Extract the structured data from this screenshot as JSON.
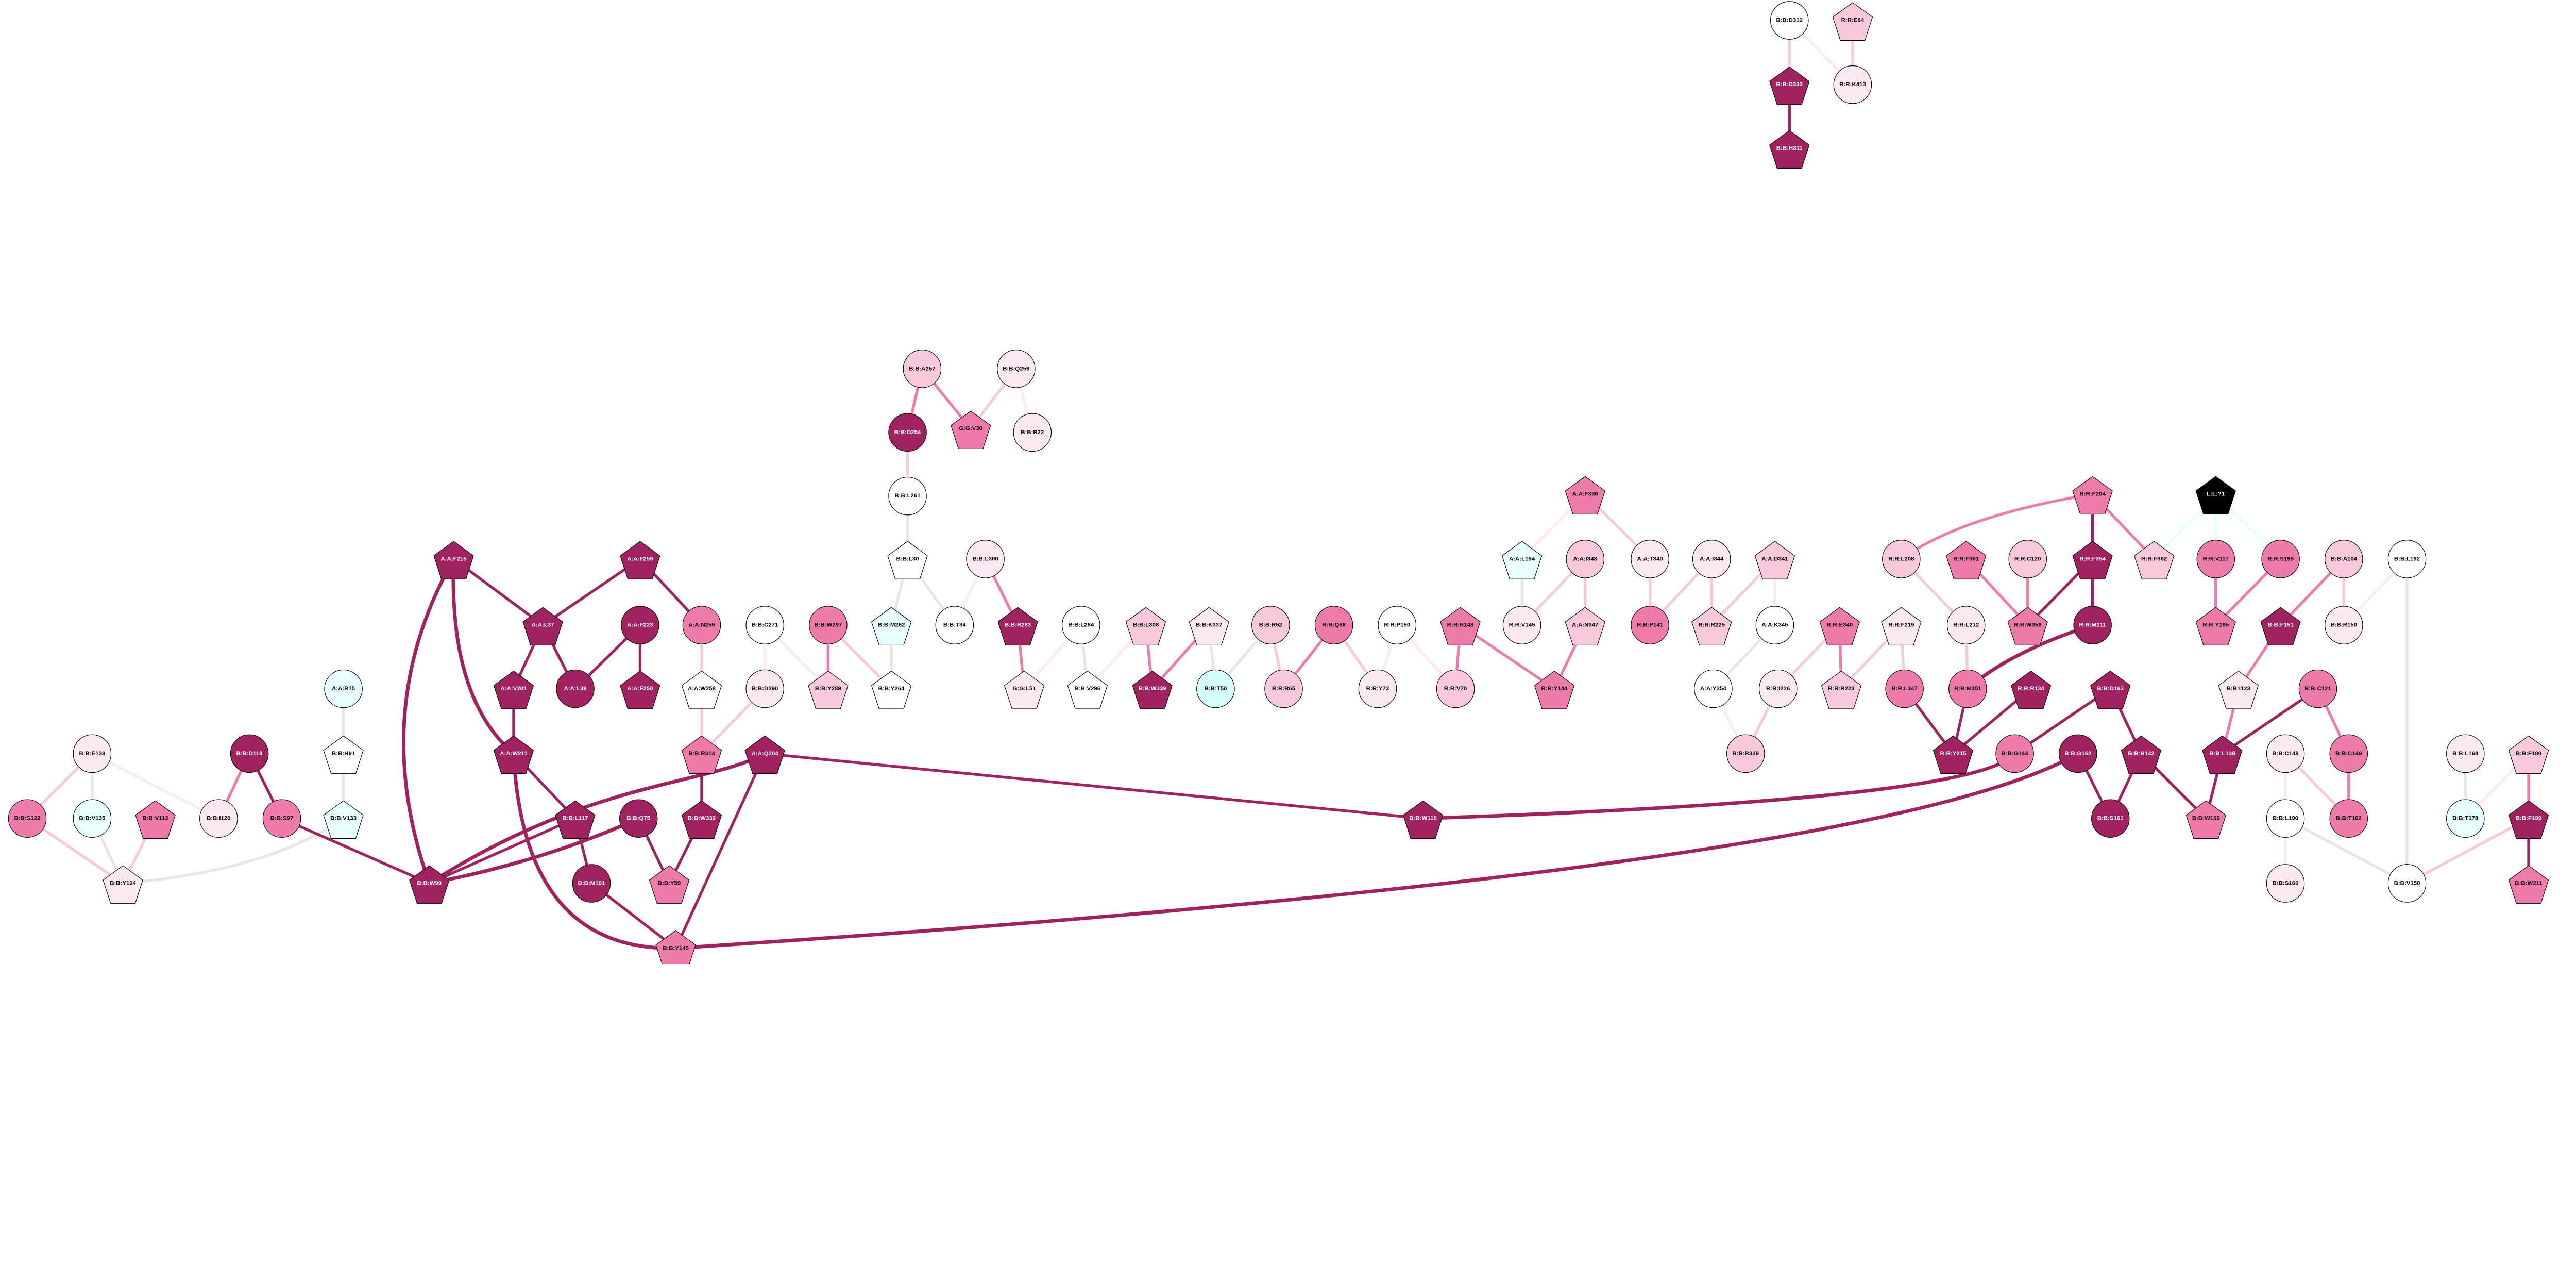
{
  "palette": {
    "dark": "#A0225E",
    "mid": "#EF7BAA",
    "light": "#F8C8DC",
    "vlight": "#FBEAF2",
    "white": "#FFFFFF",
    "cyan": "#E8FFFF",
    "cyan2": "#D5FFFF",
    "black": "#000000",
    "grey": "#E6E6E6",
    "edge_cyan": "#E6FFFF"
  },
  "nodes": [
    {
      "label": "B:B:D312",
      "shape": "circle",
      "fill": "white"
    },
    {
      "label": "R:R:E64",
      "shape": "pentagon",
      "fill": "light"
    },
    {
      "label": "B:B:D333",
      "shape": "pentagon",
      "fill": "dark"
    },
    {
      "label": "R:R:K413",
      "shape": "circle",
      "fill": "vlight"
    },
    {
      "label": "B:B:H311",
      "shape": "pentagon",
      "fill": "dark"
    },
    {
      "label": "B:B:A257",
      "shape": "circle",
      "fill": "light"
    },
    {
      "label": "B:B:Q259",
      "shape": "circle",
      "fill": "vlight"
    },
    {
      "label": "B:B:D254",
      "shape": "circle",
      "fill": "dark"
    },
    {
      "label": "G:G:V30",
      "shape": "pentagon",
      "fill": "mid"
    },
    {
      "label": "B:B:R22",
      "shape": "circle",
      "fill": "vlight"
    },
    {
      "label": "B:B:L261",
      "shape": "circle",
      "fill": "white"
    },
    {
      "label": "A:A:F215",
      "shape": "pentagon",
      "fill": "dark"
    },
    {
      "label": "A:A:F259",
      "shape": "pentagon",
      "fill": "dark"
    },
    {
      "label": "B:B:L30",
      "shape": "pentagon",
      "fill": "white"
    },
    {
      "label": "B:B:L300",
      "shape": "circle",
      "fill": "vlight"
    },
    {
      "label": "A:A:F336",
      "shape": "pentagon",
      "fill": "mid"
    },
    {
      "label": "A:A:L194",
      "shape": "pentagon",
      "fill": "cyan"
    },
    {
      "label": "A:A:I343",
      "shape": "circle",
      "fill": "light"
    },
    {
      "label": "A:A:T340",
      "shape": "circle",
      "fill": "vlight"
    },
    {
      "label": "A:A:I344",
      "shape": "circle",
      "fill": "vlight"
    },
    {
      "label": "A:A:D341",
      "shape": "pentagon",
      "fill": "light"
    },
    {
      "label": "R:R:F204",
      "shape": "pentagon",
      "fill": "mid"
    },
    {
      "label": "L:L:?1",
      "shape": "pentagon",
      "fill": "black"
    },
    {
      "label": "R:R:L208",
      "shape": "circle",
      "fill": "light"
    },
    {
      "label": "R:R:F361",
      "shape": "pentagon",
      "fill": "mid"
    },
    {
      "label": "R:R:C120",
      "shape": "circle",
      "fill": "light"
    },
    {
      "label": "R:R:F354",
      "shape": "pentagon",
      "fill": "dark"
    },
    {
      "label": "R:R:F362",
      "shape": "pentagon",
      "fill": "light"
    },
    {
      "label": "R:R:V117",
      "shape": "circle",
      "fill": "mid"
    },
    {
      "label": "R:R:S199",
      "shape": "circle",
      "fill": "mid"
    },
    {
      "label": "B:B:A104",
      "shape": "circle",
      "fill": "light"
    },
    {
      "label": "B:B:L192",
      "shape": "circle",
      "fill": "white"
    },
    {
      "label": "A:A:L37",
      "shape": "pentagon",
      "fill": "dark"
    },
    {
      "label": "A:A:F223",
      "shape": "circle",
      "fill": "dark"
    },
    {
      "label": "A:A:N256",
      "shape": "circle",
      "fill": "mid"
    },
    {
      "label": "B:B:C271",
      "shape": "circle",
      "fill": "white"
    },
    {
      "label": "B:B:W297",
      "shape": "circle",
      "fill": "mid"
    },
    {
      "label": "B:B:M262",
      "shape": "pentagon",
      "fill": "cyan"
    },
    {
      "label": "B:B:T34",
      "shape": "circle",
      "fill": "white"
    },
    {
      "label": "B:B:R283",
      "shape": "pentagon",
      "fill": "dark"
    },
    {
      "label": "B:B:L284",
      "shape": "circle",
      "fill": "white"
    },
    {
      "label": "B:B:L308",
      "shape": "pentagon",
      "fill": "light"
    },
    {
      "label": "B:B:K337",
      "shape": "pentagon",
      "fill": "vlight"
    },
    {
      "label": "B:B:R52",
      "shape": "circle",
      "fill": "light"
    },
    {
      "label": "R:R:Q68",
      "shape": "circle",
      "fill": "mid"
    },
    {
      "label": "R:R:P150",
      "shape": "circle",
      "fill": "white"
    },
    {
      "label": "R:R:R148",
      "shape": "pentagon",
      "fill": "mid"
    },
    {
      "label": "R:R:V145",
      "shape": "circle",
      "fill": "vlight"
    },
    {
      "label": "A:A:N347",
      "shape": "pentagon",
      "fill": "light"
    },
    {
      "label": "R:R:P141",
      "shape": "circle",
      "fill": "mid"
    },
    {
      "label": "R:R:R225",
      "shape": "pentagon",
      "fill": "light"
    },
    {
      "label": "A:A:K345",
      "shape": "circle",
      "fill": "white"
    },
    {
      "label": "R:R:E340",
      "shape": "pentagon",
      "fill": "mid"
    },
    {
      "label": "R:R:F219",
      "shape": "pentagon",
      "fill": "vlight"
    },
    {
      "label": "R:R:L212",
      "shape": "circle",
      "fill": "vlight"
    },
    {
      "label": "R:R:W358",
      "shape": "pentagon",
      "fill": "mid"
    },
    {
      "label": "R:R:M211",
      "shape": "circle",
      "fill": "dark"
    },
    {
      "label": "R:R:Y195",
      "shape": "pentagon",
      "fill": "mid"
    },
    {
      "label": "B:B:F151",
      "shape": "pentagon",
      "fill": "dark"
    },
    {
      "label": "B:B:R150",
      "shape": "circle",
      "fill": "vlight"
    },
    {
      "label": "A:A:R15",
      "shape": "circle",
      "fill": "cyan"
    },
    {
      "label": "A:A:V201",
      "shape": "pentagon",
      "fill": "dark"
    },
    {
      "label": "A:A:L39",
      "shape": "circle",
      "fill": "dark"
    },
    {
      "label": "A:A:F250",
      "shape": "pentagon",
      "fill": "dark"
    },
    {
      "label": "A:A:W258",
      "shape": "pentagon",
      "fill": "white"
    },
    {
      "label": "B:B:D290",
      "shape": "circle",
      "fill": "vlight"
    },
    {
      "label": "B:B:Y289",
      "shape": "pentagon",
      "fill": "light"
    },
    {
      "label": "B:B:Y264",
      "shape": "pentagon",
      "fill": "white"
    },
    {
      "label": "G:G:L51",
      "shape": "pentagon",
      "fill": "vlight"
    },
    {
      "label": "B:B:V296",
      "shape": "pentagon",
      "fill": "white"
    },
    {
      "label": "B:B:W339",
      "shape": "pentagon",
      "fill": "dark"
    },
    {
      "label": "B:B:T50",
      "shape": "circle",
      "fill": "cyan2"
    },
    {
      "label": "R:R:R65",
      "shape": "circle",
      "fill": "light"
    },
    {
      "label": "R:R:Y73",
      "shape": "circle",
      "fill": "vlight"
    },
    {
      "label": "R:R:V70",
      "shape": "circle",
      "fill": "light"
    },
    {
      "label": "R:R:Y144",
      "shape": "pentagon",
      "fill": "mid"
    },
    {
      "label": "A:A:Y354",
      "shape": "circle",
      "fill": "white"
    },
    {
      "label": "R:R:I226",
      "shape": "circle",
      "fill": "vlight"
    },
    {
      "label": "R:R:R223",
      "shape": "pentagon",
      "fill": "light"
    },
    {
      "label": "R:R:L347",
      "shape": "circle",
      "fill": "mid"
    },
    {
      "label": "R:R:M351",
      "shape": "circle",
      "fill": "mid"
    },
    {
      "label": "R:R:R134",
      "shape": "pentagon",
      "fill": "dark"
    },
    {
      "label": "B:B:D163",
      "shape": "pentagon",
      "fill": "dark"
    },
    {
      "label": "B:B:I123",
      "shape": "pentagon",
      "fill": "vlight"
    },
    {
      "label": "B:B:C121",
      "shape": "circle",
      "fill": "mid"
    },
    {
      "label": "B:B:E138",
      "shape": "circle",
      "fill": "vlight"
    },
    {
      "label": "B:B:D118",
      "shape": "circle",
      "fill": "dark"
    },
    {
      "label": "B:B:H91",
      "shape": "pentagon",
      "fill": "white"
    },
    {
      "label": "A:A:W211",
      "shape": "pentagon",
      "fill": "dark"
    },
    {
      "label": "B:B:R314",
      "shape": "pentagon",
      "fill": "mid"
    },
    {
      "label": "A:A:Q204",
      "shape": "pentagon",
      "fill": "dark"
    },
    {
      "label": "R:R:R339",
      "shape": "circle",
      "fill": "light"
    },
    {
      "label": "R:R:Y215",
      "shape": "pentagon",
      "fill": "dark"
    },
    {
      "label": "B:B:G144",
      "shape": "circle",
      "fill": "mid"
    },
    {
      "label": "B:B:G162",
      "shape": "circle",
      "fill": "dark"
    },
    {
      "label": "B:B:H142",
      "shape": "pentagon",
      "fill": "dark"
    },
    {
      "label": "B:B:L139",
      "shape": "pentagon",
      "fill": "dark"
    },
    {
      "label": "B:B:C148",
      "shape": "circle",
      "fill": "vlight"
    },
    {
      "label": "B:B:C149",
      "shape": "circle",
      "fill": "mid"
    },
    {
      "label": "B:B:L168",
      "shape": "circle",
      "fill": "vlight"
    },
    {
      "label": "B:B:F180",
      "shape": "pentagon",
      "fill": "light"
    },
    {
      "label": "B:B:S122",
      "shape": "circle",
      "fill": "mid"
    },
    {
      "label": "B:B:V135",
      "shape": "circle",
      "fill": "cyan"
    },
    {
      "label": "B:B:V112",
      "shape": "pentagon",
      "fill": "mid"
    },
    {
      "label": "B:B:I120",
      "shape": "circle",
      "fill": "vlight"
    },
    {
      "label": "B:B:S97",
      "shape": "circle",
      "fill": "mid"
    },
    {
      "label": "B:B:V133",
      "shape": "pentagon",
      "fill": "cyan"
    },
    {
      "label": "B:B:L117",
      "shape": "pentagon",
      "fill": "dark"
    },
    {
      "label": "B:B:Q75",
      "shape": "circle",
      "fill": "dark"
    },
    {
      "label": "B:B:W332",
      "shape": "pentagon",
      "fill": "dark"
    },
    {
      "label": "B:B:W110",
      "shape": "pentagon",
      "fill": "dark"
    },
    {
      "label": "B:B:S161",
      "shape": "circle",
      "fill": "dark"
    },
    {
      "label": "B:B:W169",
      "shape": "pentagon",
      "fill": "mid"
    },
    {
      "label": "B:B:L190",
      "shape": "circle",
      "fill": "white"
    },
    {
      "label": "B:B:T102",
      "shape": "circle",
      "fill": "mid"
    },
    {
      "label": "B:B:T178",
      "shape": "circle",
      "fill": "cyan"
    },
    {
      "label": "B:B:F199",
      "shape": "pentagon",
      "fill": "dark"
    },
    {
      "label": "B:B:Y124",
      "shape": "pentagon",
      "fill": "vlight"
    },
    {
      "label": "B:B:W99",
      "shape": "pentagon",
      "fill": "dark"
    },
    {
      "label": "B:B:M101",
      "shape": "circle",
      "fill": "dark"
    },
    {
      "label": "B:B:Y59",
      "shape": "pentagon",
      "fill": "mid"
    },
    {
      "label": "B:B:S160",
      "shape": "circle",
      "fill": "vlight"
    },
    {
      "label": "B:B:V158",
      "shape": "circle",
      "fill": "white"
    },
    {
      "label": "B:B:W211",
      "shape": "pentagon",
      "fill": "mid"
    },
    {
      "label": "B:B:Y145",
      "shape": "pentagon",
      "fill": "mid"
    }
  ],
  "edges": [
    [
      "B:B:D312",
      "B:B:D333",
      "light"
    ],
    [
      "B:B:D312",
      "R:R:K413",
      "vlight"
    ],
    [
      "R:R:E64",
      "R:R:K413",
      "light"
    ],
    [
      "B:B:D333",
      "B:B:H311",
      "dark"
    ],
    [
      "B:B:A257",
      "B:B:D254",
      "mid"
    ],
    [
      "B:B:A257",
      "G:G:V30",
      "mid"
    ],
    [
      "B:B:Q259",
      "G:G:V30",
      "light"
    ],
    [
      "B:B:Q259",
      "B:B:R22",
      "vlight"
    ],
    [
      "B:B:D254",
      "B:B:L261",
      "light"
    ],
    [
      "B:B:L261",
      "B:B:L30",
      "grey"
    ],
    [
      "B:B:L30",
      "B:B:M262",
      "grey"
    ],
    [
      "B:B:L30",
      "B:B:T34",
      "grey"
    ],
    [
      "B:B:L300",
      "B:B:T34",
      "vlight"
    ],
    [
      "B:B:L300",
      "B:B:R283",
      "mid"
    ],
    [
      "B:B:M262",
      "B:B:Y264",
      "grey"
    ],
    [
      "B:B:W297",
      "B:B:Y289",
      "mid"
    ],
    [
      "B:B:W297",
      "B:B:Y264",
      "light"
    ],
    [
      "B:B:C271",
      "B:B:D290",
      "vlight"
    ],
    [
      "B:B:C271",
      "B:B:Y289",
      "vlight"
    ],
    [
      "B:B:R283",
      "G:G:L51",
      "mid"
    ],
    [
      "B:B:L284",
      "G:G:L51",
      "vlight"
    ],
    [
      "B:B:L284",
      "B:B:V296",
      "grey"
    ],
    [
      "B:B:L308",
      "B:B:V296",
      "vlight"
    ],
    [
      "B:B:L308",
      "B:B:W339",
      "mid"
    ],
    [
      "B:B:K337",
      "B:B:W339",
      "mid"
    ],
    [
      "B:B:K337",
      "B:B:T50",
      "grey"
    ],
    [
      "B:B:R52",
      "B:B:T50",
      "grey"
    ],
    [
      "B:B:R52",
      "R:R:R65",
      "light"
    ],
    [
      "R:R:Q68",
      "R:R:R65",
      "mid"
    ],
    [
      "R:R:Q68",
      "R:R:Y73",
      "light"
    ],
    [
      "R:R:P150",
      "R:R:Y73",
      "vlight"
    ],
    [
      "R:R:P150",
      "R:R:V70",
      "vlight"
    ],
    [
      "R:R:R148",
      "R:R:V70",
      "mid"
    ],
    [
      "R:R:R148",
      "R:R:Y144",
      "mid"
    ],
    [
      "A:A:N347",
      "R:R:Y144",
      "mid"
    ],
    [
      "A:A:F336",
      "A:A:L194",
      "vlight"
    ],
    [
      "A:A:F336",
      "A:A:T340",
      "light"
    ],
    [
      "A:A:L194",
      "R:R:V145",
      "grey"
    ],
    [
      "A:A:I343",
      "R:R:V145",
      "light"
    ],
    [
      "A:A:I343",
      "A:A:N347",
      "light"
    ],
    [
      "A:A:T340",
      "R:R:P141",
      "light"
    ],
    [
      "A:A:I344",
      "R:R:P141",
      "light"
    ],
    [
      "A:A:I344",
      "R:R:R225",
      "light"
    ],
    [
      "A:A:D341",
      "R:R:R225",
      "light"
    ],
    [
      "A:A:D341",
      "A:A:K345",
      "vlight"
    ],
    [
      "A:A:K345",
      "A:A:Y354",
      "grey"
    ],
    [
      "R:R:E340",
      "R:R:I226",
      "light"
    ],
    [
      "R:R:E340",
      "R:R:R223",
      "mid"
    ],
    [
      "R:R:F219",
      "R:R:R223",
      "light"
    ],
    [
      "R:R:F219",
      "R:R:L347",
      "light"
    ],
    [
      "A:A:Y354",
      "R:R:R339",
      "vlight"
    ],
    [
      "R:R:I226",
      "R:R:R339",
      "light"
    ],
    [
      "R:R:F204",
      "R:R:L208",
      "mid"
    ],
    [
      "R:R:F204",
      "R:R:F354",
      "dark"
    ],
    [
      "R:R:F204",
      "R:R:F362",
      "mid"
    ],
    [
      "R:R:L208",
      "R:R:L212",
      "light"
    ],
    [
      "R:R:F361",
      "R:R:W358",
      "mid"
    ],
    [
      "R:R:C120",
      "R:R:W358",
      "mid"
    ],
    [
      "R:R:F354",
      "R:R:W358",
      "dark"
    ],
    [
      "R:R:F354",
      "R:R:M211",
      "dark"
    ],
    [
      "R:R:L212",
      "R:R:M351",
      "light"
    ],
    [
      "R:R:M211",
      "R:R:M351",
      "dark"
    ],
    [
      "R:R:L347",
      "R:R:Y215",
      "dark"
    ],
    [
      "R:R:M351",
      "R:R:Y215",
      "dark"
    ],
    [
      "R:R:R134",
      "R:R:Y215",
      "dark"
    ],
    [
      "L:L:?1",
      "R:R:F362",
      "edge_cyan"
    ],
    [
      "L:L:?1",
      "R:R:V117",
      "edge_cyan"
    ],
    [
      "L:L:?1",
      "R:R:S199",
      "edge_cyan"
    ],
    [
      "R:R:V117",
      "R:R:Y195",
      "mid"
    ],
    [
      "R:R:S199",
      "R:R:Y195",
      "mid"
    ],
    [
      "B:B:A104",
      "B:B:F151",
      "mid"
    ],
    [
      "B:B:A104",
      "B:B:R150",
      "light"
    ],
    [
      "B:B:L192",
      "B:B:R150",
      "vlight"
    ],
    [
      "B:B:L192",
      "B:B:V158",
      "grey"
    ],
    [
      "B:B:F151",
      "B:B:I123",
      "mid"
    ],
    [
      "B:B:I123",
      "B:B:L139",
      "mid"
    ],
    [
      "B:B:C121",
      "B:B:L139",
      "dark"
    ],
    [
      "B:B:C121",
      "B:B:C149",
      "mid"
    ],
    [
      "B:B:D163",
      "B:B:G144",
      "dark"
    ],
    [
      "B:B:D163",
      "B:B:H142",
      "dark"
    ],
    [
      "B:B:G144",
      "B:B:W110",
      "dark"
    ],
    [
      "B:B:G162",
      "B:B:Y145",
      "dark"
    ],
    [
      "B:B:G162",
      "B:B:S161",
      "dark"
    ],
    [
      "B:B:H142",
      "B:B:S161",
      "dark"
    ],
    [
      "B:B:H142",
      "B:B:W169",
      "dark"
    ],
    [
      "B:B:L139",
      "B:B:W169",
      "dark"
    ],
    [
      "B:B:C148",
      "B:B:L190",
      "vlight"
    ],
    [
      "B:B:C148",
      "B:B:T102",
      "light"
    ],
    [
      "B:B:C149",
      "B:B:T102",
      "mid"
    ],
    [
      "B:B:L190",
      "B:B:S160",
      "vlight"
    ],
    [
      "B:B:L190",
      "B:B:V158",
      "grey"
    ],
    [
      "B:B:L168",
      "B:B:T178",
      "grey"
    ],
    [
      "B:B:F180",
      "B:B:T178",
      "vlight"
    ],
    [
      "B:B:F180",
      "B:B:F199",
      "mid"
    ],
    [
      "B:B:F199",
      "B:B:V158",
      "light"
    ],
    [
      "B:B:F199",
      "B:B:W211",
      "dark"
    ],
    [
      "B:B:E138",
      "B:B:S122",
      "light"
    ],
    [
      "B:B:E138",
      "B:B:V135",
      "grey"
    ],
    [
      "B:B:E138",
      "B:B:I120",
      "vlight"
    ],
    [
      "B:B:D118",
      "B:B:I120",
      "mid"
    ],
    [
      "B:B:D118",
      "B:B:S97",
      "dark"
    ],
    [
      "A:A:R15",
      "B:B:H91",
      "grey"
    ],
    [
      "B:B:H91",
      "B:B:V133",
      "grey"
    ],
    [
      "B:B:S122",
      "B:B:Y124",
      "light"
    ],
    [
      "B:B:V135",
      "B:B:Y124",
      "grey"
    ],
    [
      "B:B:V112",
      "B:B:Y124",
      "light"
    ],
    [
      "B:B:V133",
      "B:B:Y124",
      "grey"
    ],
    [
      "B:B:S97",
      "B:B:W99",
      "dark"
    ],
    [
      "A:A:F215",
      "A:A:L37",
      "dark"
    ],
    [
      "A:A:F215",
      "A:A:W211",
      "dark"
    ],
    [
      "A:A:F215",
      "B:B:W99",
      "dark"
    ],
    [
      "A:A:F259",
      "A:A:L37",
      "dark"
    ],
    [
      "A:A:F259",
      "A:A:N256",
      "dark"
    ],
    [
      "A:A:L37",
      "A:A:V201",
      "dark"
    ],
    [
      "A:A:L37",
      "A:A:L39",
      "dark"
    ],
    [
      "A:A:F223",
      "A:A:L39",
      "dark"
    ],
    [
      "A:A:F223",
      "A:A:F250",
      "dark"
    ],
    [
      "A:A:V201",
      "A:A:W211",
      "dark"
    ],
    [
      "A:A:N256",
      "A:A:W258",
      "light"
    ],
    [
      "A:A:W258",
      "B:B:R314",
      "light"
    ],
    [
      "B:B:D290",
      "B:B:R314",
      "light"
    ],
    [
      "B:B:R314",
      "B:B:W332",
      "dark"
    ],
    [
      "A:A:Q204",
      "B:B:W110",
      "dark"
    ],
    [
      "A:A:Q204",
      "B:B:W99",
      "dark"
    ],
    [
      "B:B:L117",
      "B:B:W99",
      "dark"
    ],
    [
      "A:A:W211",
      "B:B:L117",
      "dark"
    ],
    [
      "A:A:W211",
      "B:B:Y145",
      "dark"
    ],
    [
      "B:B:L117",
      "B:B:M101",
      "dark"
    ],
    [
      "B:B:Q75",
      "B:B:W99",
      "dark"
    ],
    [
      "B:B:Q75",
      "B:B:Y59",
      "dark"
    ],
    [
      "B:B:W332",
      "B:B:Y59",
      "dark"
    ],
    [
      "B:B:M101",
      "B:B:Y145",
      "dark"
    ],
    [
      "A:A:Q204",
      "B:B:Y145",
      "dark"
    ]
  ]
}
